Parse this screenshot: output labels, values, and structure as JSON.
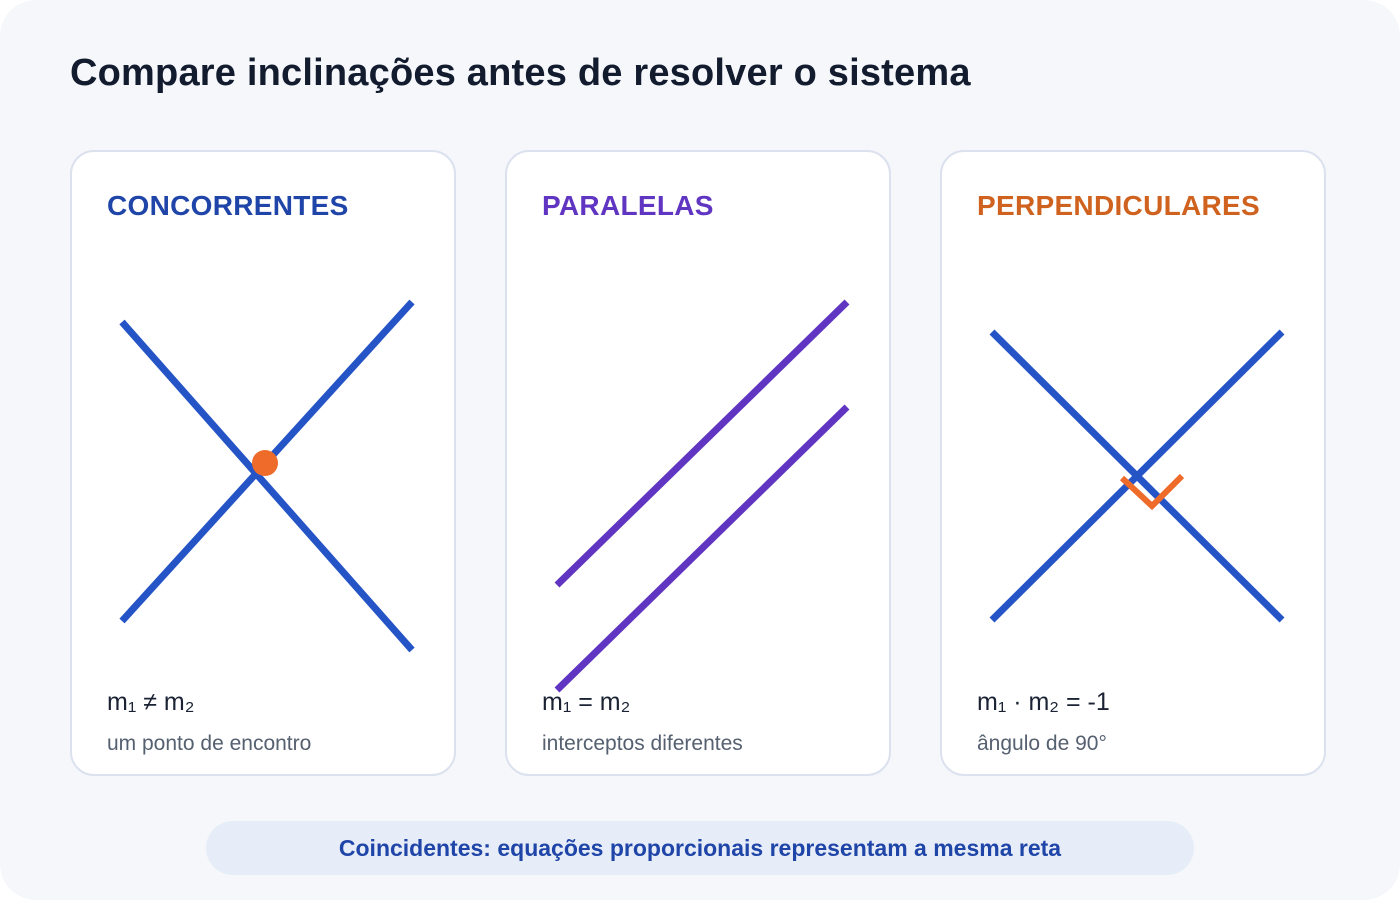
{
  "title": "Compare inclinações antes de resolver o sistema",
  "colors": {
    "line_blue": "#2554c7",
    "line_purple": "#6035c2",
    "accent_orange": "#ee6b2a",
    "title_blue": "#1f45a8",
    "title_purple": "#6035c2",
    "title_orange": "#d0621f"
  },
  "cards": [
    {
      "title": "CONCORRENTES",
      "formula": "m₁ ≠ m₂",
      "caption": "um ponto de encontro"
    },
    {
      "title": "PARALELAS",
      "formula": "m₁ = m₂",
      "caption": "interceptos diferentes"
    },
    {
      "title": "PERPENDICULARES",
      "formula": "m₁ · m₂ = -1",
      "caption": "ângulo de 90°"
    }
  ],
  "footer": "Coincidentes: equações proporcionais representam a mesma reta"
}
